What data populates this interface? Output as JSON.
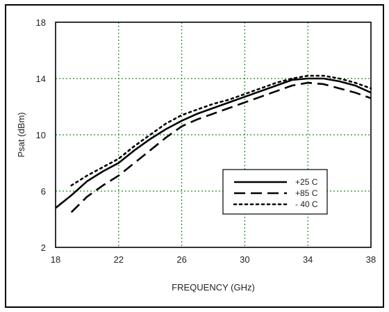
{
  "chart_data": {
    "type": "line",
    "title": "",
    "xlabel": "FREQUENCY (GHz)",
    "ylabel": "Psat (dBm)",
    "xlim": [
      18,
      38
    ],
    "ylim": [
      2,
      18
    ],
    "xticks": [
      18,
      22,
      26,
      30,
      34,
      38
    ],
    "yticks": [
      2,
      6,
      10,
      14,
      18
    ],
    "grid": true,
    "legend_position": "lower-right",
    "series": [
      {
        "name": "+25 C",
        "style": "solid",
        "color": "#000000",
        "x": [
          18,
          19,
          20,
          21,
          22,
          23,
          24,
          25,
          26,
          27,
          28,
          29,
          30,
          31,
          32,
          33,
          34,
          35,
          36,
          37,
          38
        ],
        "y": [
          4.8,
          5.7,
          6.7,
          7.4,
          8.0,
          8.9,
          9.7,
          10.4,
          11.0,
          11.5,
          11.9,
          12.3,
          12.7,
          13.1,
          13.5,
          13.9,
          14.0,
          14.0,
          13.8,
          13.5,
          13.0
        ]
      },
      {
        "name": "+85 C",
        "style": "dashed",
        "color": "#000000",
        "x": [
          19,
          20,
          21,
          22,
          23,
          24,
          25,
          26,
          27,
          28,
          29,
          30,
          31,
          32,
          33,
          34,
          35,
          36,
          37,
          38
        ],
        "y": [
          4.5,
          5.6,
          6.4,
          7.1,
          8.0,
          8.9,
          9.8,
          10.6,
          11.1,
          11.5,
          11.9,
          12.3,
          12.7,
          13.1,
          13.5,
          13.7,
          13.6,
          13.3,
          13.0,
          12.6
        ]
      },
      {
        "name": "- 40 C",
        "style": "dotted",
        "color": "#000000",
        "x": [
          19,
          20,
          21,
          22,
          23,
          24,
          25,
          26,
          27,
          28,
          29,
          30,
          31,
          32,
          33,
          34,
          35,
          36,
          37,
          38
        ],
        "y": [
          6.4,
          7.1,
          7.7,
          8.3,
          9.2,
          10.0,
          10.8,
          11.4,
          11.8,
          12.2,
          12.5,
          12.9,
          13.3,
          13.7,
          14.0,
          14.2,
          14.2,
          14.0,
          13.7,
          13.3
        ]
      }
    ]
  }
}
